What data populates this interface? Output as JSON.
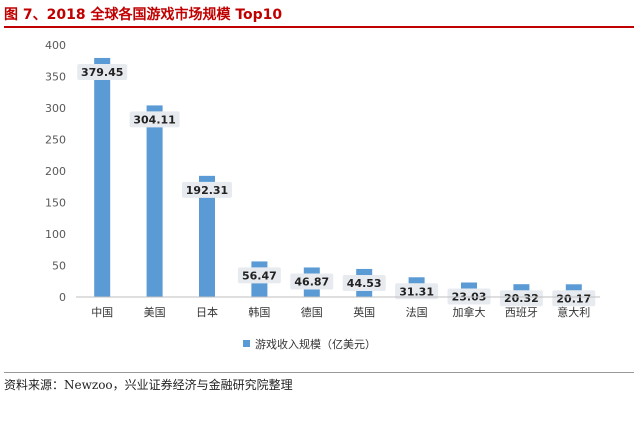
{
  "title": "图 7、2018 全球各国游戏市场规模 Top10",
  "source": "资料来源：Newzoo，兴业证券经济与金融研究院整理",
  "chart_data": {
    "type": "bar",
    "categories": [
      "中国",
      "美国",
      "日本",
      "韩国",
      "德国",
      "英国",
      "法国",
      "加拿大",
      "西班牙",
      "意大利"
    ],
    "series": [
      {
        "name": "游戏收入规模（亿美元）",
        "values": [
          379.45,
          304.11,
          192.31,
          56.47,
          46.87,
          44.53,
          31.31,
          23.03,
          20.32,
          20.17
        ]
      }
    ],
    "value_labels": [
      "379.45",
      "304.11",
      "192.31",
      "56.47",
      "46.87",
      "44.53",
      "31.31",
      "23.03",
      "20.32",
      "20.17"
    ],
    "yticks": [
      "0",
      "50",
      "100",
      "150",
      "200",
      "250",
      "300",
      "350",
      "400"
    ],
    "ylim": [
      0,
      400
    ],
    "legend_position": "bottom",
    "grid": false,
    "bar_color": "#5b9bd5",
    "label_box_color": "#e7ebf0"
  }
}
